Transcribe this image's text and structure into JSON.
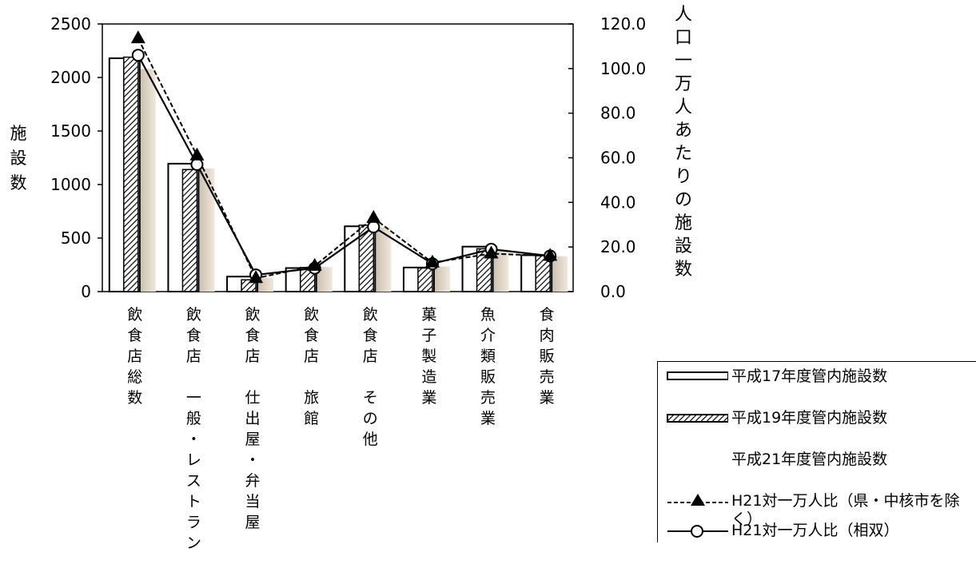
{
  "chart_data": {
    "type": "bar",
    "categories": [
      "飲食店総数",
      "飲食店　一般・レストラン",
      "飲食店　仕出屋・弁当屋",
      "飲食店　旅館",
      "飲食店　その他",
      "菓子製造業",
      "魚介類販売業",
      "食肉販売業"
    ],
    "ylabel_left": "施設数",
    "ylabel_right": "人口一万人あたりの施設数",
    "left_axis": {
      "min": 0,
      "max": 2500,
      "ticks": [
        "0",
        "500",
        "1000",
        "1500",
        "2000",
        "2500"
      ]
    },
    "right_axis": {
      "min": 0,
      "max": 120,
      "ticks": [
        "0.0",
        "20.0",
        "40.0",
        "60.0",
        "80.0",
        "100.0",
        "120.0"
      ]
    },
    "grid": false,
    "legend_position": "bottom-right",
    "series": [
      {
        "name": "平成17年度管内施設数",
        "kind": "bar",
        "axis": "left",
        "style": "open",
        "values": [
          2180,
          1195,
          140,
          220,
          610,
          225,
          420,
          340
        ]
      },
      {
        "name": "平成19年度管内施設数",
        "kind": "bar",
        "axis": "left",
        "style": "hatched",
        "values": [
          2190,
          1140,
          110,
          225,
          620,
          220,
          400,
          335
        ]
      },
      {
        "name": "平成21年度管内施設数",
        "kind": "bar",
        "axis": "left",
        "style": "gradient",
        "values": [
          2080,
          1150,
          130,
          230,
          600,
          235,
          390,
          330
        ]
      },
      {
        "name": "H21対一万人比（県・中核市を除く）",
        "kind": "line",
        "axis": "right",
        "style": "dashed-triangle",
        "values": [
          113.5,
          61.0,
          6.0,
          11.5,
          33.0,
          13.0,
          17.0,
          16.0
        ]
      },
      {
        "name": "H21対一万人比（相双）",
        "kind": "line",
        "axis": "right",
        "style": "solid-circle",
        "values": [
          106.0,
          57.0,
          7.5,
          10.5,
          29.0,
          12.5,
          19.0,
          16.0
        ]
      }
    ]
  },
  "colors": {
    "bar_outline": "#000000",
    "hatch": "#000000",
    "gradient_light": "#e9e0d4",
    "gradient_dark": "#c4b6a4"
  }
}
